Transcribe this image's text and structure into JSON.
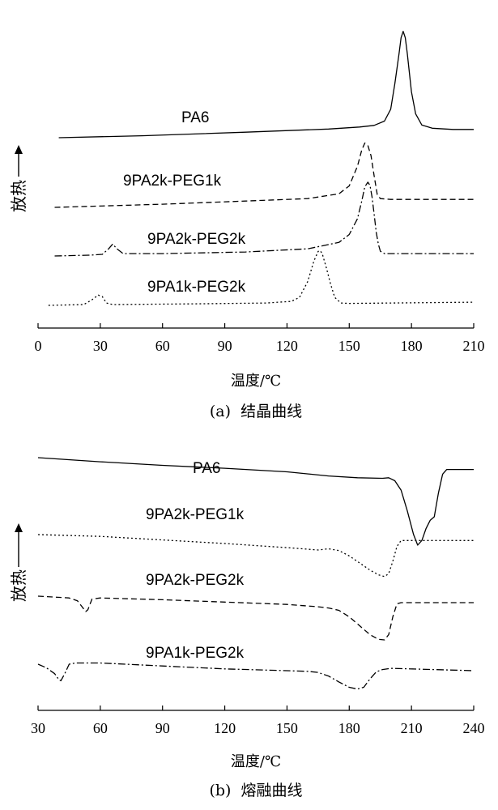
{
  "chart_data": [
    {
      "type": "line",
      "caption": "(a)  结晶曲线",
      "xlabel": "温度/℃",
      "ylabel": "放热",
      "xlim": [
        0,
        210
      ],
      "xticks": [
        0,
        30,
        60,
        90,
        120,
        150,
        180,
        210
      ],
      "grid": false,
      "series": [
        {
          "name": "PA6",
          "style": "solid",
          "points": [
            [
              10,
              0.2
            ],
            [
              50,
              0.45
            ],
            [
              100,
              0.9
            ],
            [
              140,
              1.3
            ],
            [
              155,
              1.55
            ],
            [
              162,
              1.75
            ],
            [
              167,
              2.3
            ],
            [
              170,
              3.8
            ],
            [
              172,
              7
            ],
            [
              174,
              10.8
            ],
            [
              175,
              12.8
            ],
            [
              176,
              13.6
            ],
            [
              177,
              12.8
            ],
            [
              178,
              10.8
            ],
            [
              180,
              6
            ],
            [
              182,
              3.2
            ],
            [
              185,
              1.8
            ],
            [
              190,
              1.4
            ],
            [
              200,
              1.25
            ],
            [
              210,
              1.25
            ]
          ]
        },
        {
          "name": "9PA2k-PEG1k",
          "style": "dash",
          "points": [
            [
              8,
              0
            ],
            [
              60,
              0.4
            ],
            [
              100,
              0.8
            ],
            [
              130,
              1.1
            ],
            [
              145,
              1.7
            ],
            [
              150,
              2.7
            ],
            [
              154,
              5.2
            ],
            [
              156,
              7.2
            ],
            [
              157.5,
              8.1
            ],
            [
              159,
              7.8
            ],
            [
              160.5,
              6.5
            ],
            [
              162,
              4
            ],
            [
              163.5,
              1.6
            ],
            [
              165,
              1.1
            ],
            [
              170,
              1
            ],
            [
              190,
              1
            ],
            [
              210,
              1
            ]
          ]
        },
        {
          "name": "9PA2k-PEG2k",
          "style": "dashdot",
          "points": [
            [
              8,
              0
            ],
            [
              25,
              0.1
            ],
            [
              31,
              0.2
            ],
            [
              34,
              0.9
            ],
            [
              36,
              1.5
            ],
            [
              38,
              0.9
            ],
            [
              41,
              0.3
            ],
            [
              60,
              0.3
            ],
            [
              100,
              0.5
            ],
            [
              130,
              0.9
            ],
            [
              145,
              1.7
            ],
            [
              150,
              2.7
            ],
            [
              154,
              4.7
            ],
            [
              156,
              6.9
            ],
            [
              157.5,
              8.7
            ],
            [
              159,
              9.3
            ],
            [
              160,
              8.9
            ],
            [
              161,
              7.4
            ],
            [
              162,
              5.3
            ],
            [
              163,
              3
            ],
            [
              164,
              1.5
            ],
            [
              165,
              0.6
            ],
            [
              167,
              0.3
            ],
            [
              180,
              0.3
            ],
            [
              210,
              0.3
            ]
          ]
        },
        {
          "name": "9PA1k-PEG2k",
          "style": "dot",
          "points": [
            [
              5,
              0
            ],
            [
              22,
              0.1
            ],
            [
              26,
              0.7
            ],
            [
              29,
              1.3
            ],
            [
              31,
              1.1
            ],
            [
              33,
              0.3
            ],
            [
              36,
              0.1
            ],
            [
              80,
              0.2
            ],
            [
              110,
              0.3
            ],
            [
              122,
              0.5
            ],
            [
              126,
              1
            ],
            [
              130,
              3
            ],
            [
              133,
              5.6
            ],
            [
              135,
              6.8
            ],
            [
              136,
              6.9
            ],
            [
              137,
              6.5
            ],
            [
              139,
              4.7
            ],
            [
              141,
              2.7
            ],
            [
              143,
              1
            ],
            [
              146,
              0.3
            ],
            [
              150,
              0.25
            ],
            [
              210,
              0.4
            ]
          ]
        }
      ]
    },
    {
      "type": "line",
      "caption": "(b)  熔融曲线",
      "xlabel": "温度/℃",
      "ylabel": "放热",
      "xlim": [
        30,
        240
      ],
      "xticks": [
        30,
        60,
        90,
        120,
        150,
        180,
        210,
        240
      ],
      "grid": false,
      "series": [
        {
          "name": "PA6",
          "style": "solid",
          "points": [
            [
              30,
              0
            ],
            [
              60,
              -0.7
            ],
            [
              90,
              -1.3
            ],
            [
              120,
              -1.8
            ],
            [
              150,
              -2.4
            ],
            [
              170,
              -3.1
            ],
            [
              184,
              -3.4
            ],
            [
              196,
              -3.5
            ],
            [
              199,
              -3.4
            ],
            [
              202,
              -3.9
            ],
            [
              205,
              -5.5
            ],
            [
              208,
              -9
            ],
            [
              211,
              -13
            ],
            [
              213,
              -14.8
            ],
            [
              215,
              -14
            ],
            [
              217,
              -12
            ],
            [
              219,
              -10.6
            ],
            [
              221,
              -10
            ],
            [
              223,
              -6
            ],
            [
              225,
              -2.8
            ],
            [
              227,
              -2
            ],
            [
              230,
              -2
            ],
            [
              240,
              -2
            ]
          ]
        },
        {
          "name": "9PA2k-PEG1k",
          "style": "dot",
          "points": [
            [
              30,
              0
            ],
            [
              60,
              -0.3
            ],
            [
              90,
              -0.9
            ],
            [
              120,
              -1.5
            ],
            [
              150,
              -2.2
            ],
            [
              165,
              -2.6
            ],
            [
              170,
              -2.4
            ],
            [
              175,
              -2.7
            ],
            [
              180,
              -3.6
            ],
            [
              185,
              -4.8
            ],
            [
              190,
              -6
            ],
            [
              194,
              -6.8
            ],
            [
              197,
              -7.1
            ],
            [
              199,
              -6.6
            ],
            [
              201,
              -4.5
            ],
            [
              203,
              -2
            ],
            [
              205,
              -1
            ],
            [
              210,
              -1
            ],
            [
              240,
              -1
            ]
          ]
        },
        {
          "name": "9PA2k-PEG2k",
          "style": "dash",
          "points": [
            [
              30,
              0
            ],
            [
              45,
              -0.3
            ],
            [
              49,
              -0.8
            ],
            [
              51,
              -1.7
            ],
            [
              53,
              -2.6
            ],
            [
              54,
              -2.3
            ],
            [
              56,
              -0.5
            ],
            [
              60,
              -0.3
            ],
            [
              90,
              -0.6
            ],
            [
              120,
              -1
            ],
            [
              150,
              -1.4
            ],
            [
              165,
              -1.8
            ],
            [
              170,
              -2
            ],
            [
              175,
              -2.4
            ],
            [
              180,
              -3.5
            ],
            [
              185,
              -5
            ],
            [
              190,
              -6.5
            ],
            [
              194,
              -7.3
            ],
            [
              197,
              -7.4
            ],
            [
              199,
              -6.5
            ],
            [
              201,
              -3.5
            ],
            [
              203,
              -1.3
            ],
            [
              205,
              -1.1
            ],
            [
              240,
              -1.1
            ]
          ]
        },
        {
          "name": "9PA1k-PEG2k",
          "style": "dashdot",
          "points": [
            [
              30,
              0
            ],
            [
              34,
              -0.6
            ],
            [
              38,
              -1.6
            ],
            [
              40,
              -2.6
            ],
            [
              41,
              -2.8
            ],
            [
              43,
              -1.5
            ],
            [
              45,
              0
            ],
            [
              48,
              0.2
            ],
            [
              60,
              0.2
            ],
            [
              90,
              -0.3
            ],
            [
              120,
              -0.8
            ],
            [
              150,
              -1.1
            ],
            [
              160,
              -1.2
            ],
            [
              165,
              -1.4
            ],
            [
              170,
              -2
            ],
            [
              175,
              -3
            ],
            [
              180,
              -3.9
            ],
            [
              184,
              -4.2
            ],
            [
              187,
              -3.9
            ],
            [
              190,
              -2.5
            ],
            [
              193,
              -1.3
            ],
            [
              196,
              -0.9
            ],
            [
              200,
              -0.7
            ],
            [
              240,
              -1.1
            ]
          ]
        }
      ]
    }
  ]
}
